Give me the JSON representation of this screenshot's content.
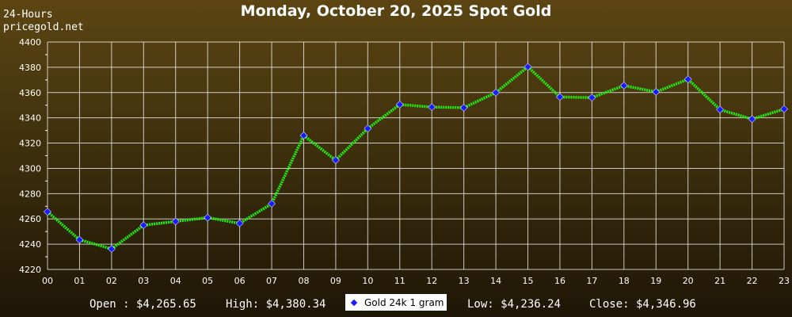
{
  "header": {
    "range_label": "24-Hours",
    "site_label": "pricegold.net",
    "title": "Monday, October 20, 2025 Spot Gold"
  },
  "footer": {
    "open": "Open : $4,265.65",
    "high": "High: $4,380.34",
    "low": "Low: $4,236.24",
    "close": "Close: $4,346.96"
  },
  "colors": {
    "line": "#22ee11",
    "marker": "#1a1aff",
    "grid": "#ffffff",
    "axis_text": "#ffffff"
  },
  "chart_data": {
    "type": "line",
    "title": "Monday, October 20, 2025 Spot Gold",
    "xlabel": "",
    "ylabel": "",
    "ylim": [
      4220,
      4400
    ],
    "yticks": [
      4220,
      4240,
      4260,
      4280,
      4300,
      4320,
      4340,
      4360,
      4380,
      4400
    ],
    "grid": true,
    "legend_position": "bottom-center",
    "x": [
      "00",
      "01",
      "02",
      "03",
      "04",
      "05",
      "06",
      "07",
      "08",
      "09",
      "10",
      "11",
      "12",
      "13",
      "14",
      "15",
      "16",
      "17",
      "18",
      "19",
      "20",
      "21",
      "22",
      "23"
    ],
    "series": [
      {
        "name": "Gold 24k 1 gram",
        "values": [
          4265.65,
          4243.5,
          4236.24,
          4255,
          4258,
          4261,
          4256.5,
          4272,
          4326,
          4306.5,
          4331.5,
          4350.5,
          4348.5,
          4348,
          4360,
          4380.34,
          4356.5,
          4356,
          4365.5,
          4360.5,
          4370.5,
          4346.5,
          4339,
          4346.96
        ]
      }
    ]
  }
}
